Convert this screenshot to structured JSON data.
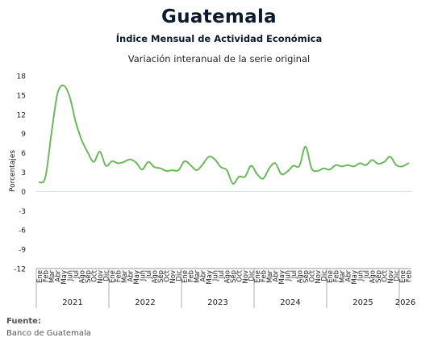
{
  "header": {
    "title": "Guatemala",
    "subtitle": "Índice Mensual de Actividad Económica",
    "chart_desc": "Variación interanual de la serie original"
  },
  "source": {
    "label": "Fuente:",
    "value": "Banco de Guatemala"
  },
  "colors": {
    "line": "#6aba5a",
    "axis": "#999999",
    "zero_line": "#cfe0f1",
    "text": "#1a1a1a"
  },
  "chart_data": {
    "type": "line",
    "ylabel": "Porcentajes",
    "ylim": [
      -12,
      18
    ],
    "yticks": [
      18,
      15,
      12,
      9,
      6,
      3,
      0,
      -3,
      -6,
      -9,
      -12
    ],
    "grid": false,
    "months": [
      "Ene",
      "Feb",
      "Mar",
      "Abr",
      "May",
      "Jun",
      "Jul",
      "Ago",
      "Sep",
      "Oct",
      "Nov",
      "Dic"
    ],
    "years": [
      "2021",
      "2022",
      "2023",
      "2024",
      "2025",
      "2026"
    ],
    "x_count": 62,
    "series": [
      {
        "values": [
          1.4,
          2.2,
          9.0,
          15.2,
          16.5,
          14.8,
          10.9,
          8.0,
          6.1,
          4.6,
          6.2,
          4.0,
          4.7,
          4.4,
          4.6,
          5.0,
          4.5,
          3.4,
          4.6,
          3.8,
          3.6,
          3.2,
          3.3,
          3.3,
          4.7,
          4.1,
          3.3,
          4.2,
          5.4,
          5.0,
          3.8,
          3.3,
          1.2,
          2.3,
          2.3,
          4.0,
          2.7,
          2.0,
          3.6,
          4.4,
          2.7,
          3.1,
          4.0,
          4.0,
          7.0,
          3.6,
          3.2,
          3.6,
          3.4,
          4.1,
          3.9,
          4.1,
          3.9,
          4.4,
          4.1,
          4.9,
          4.3,
          4.6,
          5.4,
          4.1,
          3.9,
          4.4
        ]
      }
    ]
  }
}
